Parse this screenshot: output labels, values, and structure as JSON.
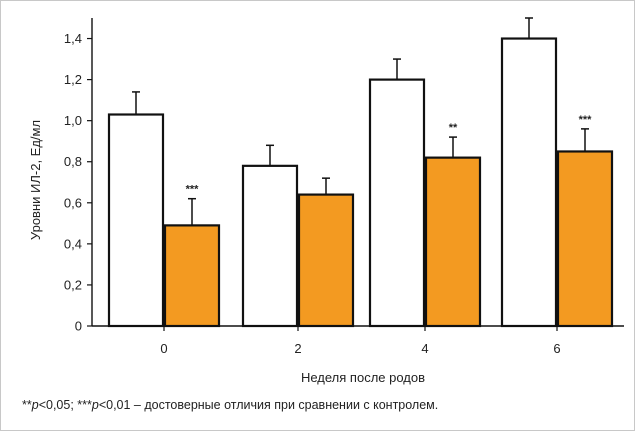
{
  "chart_data": {
    "type": "bar",
    "xlabel": "Неделя после родов",
    "ylabel": "Уровни ИЛ-2, Ед/мл",
    "categories": [
      "0",
      "2",
      "4",
      "6"
    ],
    "ylim": [
      0,
      1.5
    ],
    "yticks": [
      "0",
      "0,2",
      "0,4",
      "0,6",
      "0,8",
      "1,0",
      "1,2",
      "1,4"
    ],
    "yticks_values": [
      0,
      0.2,
      0.4,
      0.6,
      0.8,
      1.0,
      1.2,
      1.4
    ],
    "series": [
      {
        "values": [
          1.03,
          0.78,
          1.2,
          1.4
        ],
        "errors": [
          0.11,
          0.1,
          0.1,
          0.1
        ],
        "color": "#ffffff"
      },
      {
        "values": [
          0.49,
          0.64,
          0.82,
          0.85
        ],
        "errors": [
          0.13,
          0.08,
          0.1,
          0.11
        ],
        "color": "#f39a21"
      }
    ],
    "significance": [
      "***",
      "",
      "**",
      "***"
    ],
    "grid": false,
    "legend": "none"
  },
  "footnote": {
    "marks": "**",
    "p1_sym": "p",
    "p1_rest": "<0,05; ***",
    "p2_sym": "p",
    "p2_rest": "<0,01 – достоверные отличия при сравнении с контролем."
  }
}
